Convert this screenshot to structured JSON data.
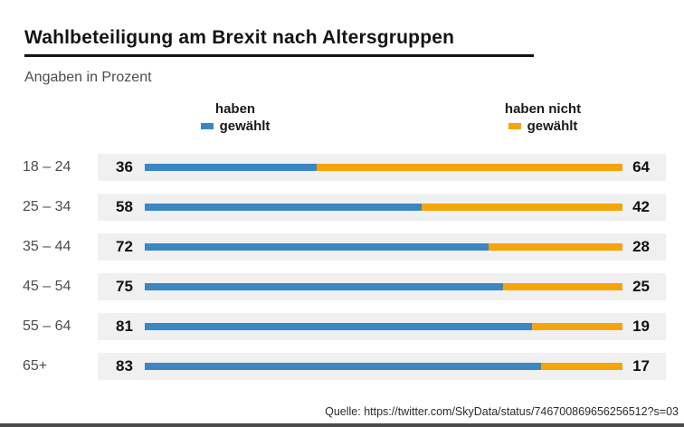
{
  "header": {
    "title": "Wahlbeteiligung am Brexit nach Altersgruppen",
    "subtitle": "Angaben in Prozent"
  },
  "legend": {
    "voted": {
      "line1": "haben",
      "line2": "gewählt",
      "color": "#3A87C4"
    },
    "not_voted": {
      "line1": "haben nicht",
      "line2": "gewählt",
      "color": "#F5A50A"
    }
  },
  "source_line": "Quelle: https://twitter.com/SkyData/status/746700869656256512?s=03",
  "colors": {
    "voted_blue": "#3A87C4",
    "not_voted_orange": "#F5A50A",
    "row_band_background": "#F0F0F0",
    "title_underline": "#141414",
    "bottom_bar": "#4A4A4A"
  },
  "chart_data": {
    "type": "bar",
    "orientation": "horizontal",
    "stacked": true,
    "title": "Wahlbeteiligung am Brexit nach Altersgruppen",
    "subtitle": "Angaben in Prozent",
    "unit": "percent",
    "categories": [
      "18 – 24",
      "25 – 34",
      "35 – 44",
      "45 – 54",
      "55 – 64",
      "65+"
    ],
    "series": [
      {
        "name": "haben gewählt",
        "color": "#3A87C4",
        "values": [
          36,
          58,
          72,
          75,
          81,
          83
        ]
      },
      {
        "name": "haben nicht gewählt",
        "color": "#F5A50A",
        "values": [
          64,
          42,
          28,
          25,
          19,
          17
        ]
      }
    ],
    "xlim": [
      0,
      100
    ],
    "grid": false,
    "legend_position": "top",
    "value_labels": "both-ends"
  }
}
